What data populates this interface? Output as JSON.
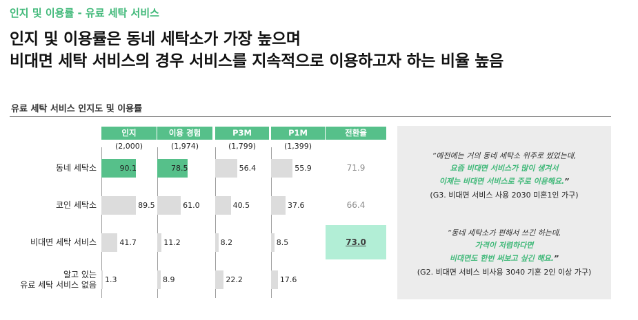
{
  "header": {
    "section_tag": "인지 및 이용률 - 유료 세탁 서비스",
    "headline_line1": "인지 및 이용률은 동네 세탁소가 가장 높으며",
    "headline_line2": "비대면 세탁 서비스의 경우 서비스를 지속적으로 이용하고자 하는 비율 높음"
  },
  "chart_data": {
    "type": "bar",
    "title": "유료 세탁 서비스 인지도 및 이용률",
    "xlim": [
      0,
      100
    ],
    "categories": [
      "동네 세탁소",
      "코인 세탁소",
      "비대면 세탁 서비스",
      "알고 있는\n유료 세탁 서비스 없음"
    ],
    "category_lines": [
      [
        "동네 세탁소"
      ],
      [
        "코인 세탁소"
      ],
      [
        "비대면 세탁 서비스"
      ],
      [
        "알고 있는",
        "유료 세탁 서비스 없음"
      ]
    ],
    "series": [
      {
        "name": "인지",
        "base": "(2,000)",
        "values": [
          90.1,
          89.5,
          41.7,
          1.3
        ],
        "value_labels": [
          "90.1",
          "89.5",
          "41.7",
          "1.3"
        ]
      },
      {
        "name": "이용 경험",
        "base": "(1,974)",
        "values": [
          78.5,
          61.0,
          11.2,
          8.9
        ],
        "value_labels": [
          "78.5",
          "61.0",
          "11.2",
          "8.9"
        ]
      },
      {
        "name": "P3M",
        "base": "(1,799)",
        "values": [
          56.4,
          40.5,
          8.2,
          22.2
        ],
        "value_labels": [
          "56.4",
          "40.5",
          "8.2",
          "22.2"
        ]
      },
      {
        "name": "P1M",
        "base": "(1,399)",
        "values": [
          55.9,
          37.6,
          8.5,
          17.6
        ],
        "value_labels": [
          "55.9",
          "37.6",
          "8.5",
          "17.6"
        ]
      }
    ],
    "highlight_color": "#56c08a",
    "bar_color": "#dcdcdc",
    "conversion": {
      "label": "전환율",
      "values": [
        "71.9",
        "66.4",
        "73.0",
        ""
      ],
      "highlight_index": 2,
      "highlight_color": "#b2eed6"
    }
  },
  "quotes": [
    {
      "lines": [
        {
          "text": "“예전에는 거의 동네 세탁소 위주로 썼었는데,",
          "style": "italic"
        },
        {
          "text": "요즘 비대면 서비스가 많이 생겨서",
          "style": "green"
        },
        {
          "text": "이제는 비대면 서비스로 주로 이용해요.",
          "style": "green",
          "tail": "”"
        }
      ],
      "source": "(G3. 비대면 서비스 사용 2030  미혼1인 가구)"
    },
    {
      "lines": [
        {
          "text": "“동네 세탁소가 편해서 쓰긴 하는데,",
          "style": "italic"
        },
        {
          "text": "가격이 저렴하다면",
          "style": "green"
        },
        {
          "text": "비대면도 한번 써보고 싶긴 해요.",
          "style": "green",
          "tail": "”"
        }
      ],
      "source": "(G2. 비대면 서비스 비사용 3040 기혼 2인 이상 가구)"
    }
  ],
  "colors": {
    "accent": "#3fb878",
    "header_fill": "#56c08a",
    "panel": "#ececec"
  }
}
